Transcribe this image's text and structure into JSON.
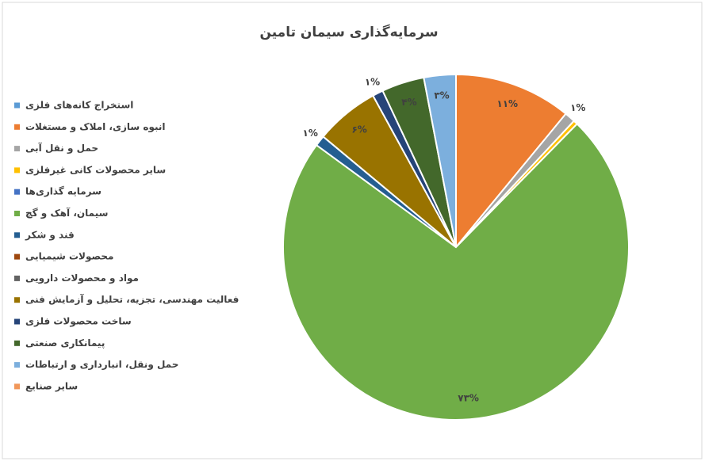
{
  "chart_data": {
    "type": "pie",
    "title": "سرمایه‌گذاری سیمان تامین",
    "categories": [
      "استخراج کانه‌های فلزی",
      "انبوه سازی، املاک و مستغلات",
      "حمل و نقل آبی",
      "سایر محصولات کانی غیرفلزی",
      "سرمایه گذاری‌ها",
      "سیمان، آهک و گچ",
      "قند و شکر",
      "محصولات شیمیایی",
      "مواد و محصولات دارویی",
      "فعالیت مهندسی، تجزیه، تحلیل و آزمایش فنی",
      "ساخت محصولات فلزی",
      "پیمانکاری صنعتی",
      "حمل ونقل، انبارداری و ارتباطات",
      "سایر صنایع"
    ],
    "values": [
      0,
      11,
      1,
      0.4,
      0,
      73,
      1,
      0,
      0,
      6,
      1,
      4,
      3,
      0
    ],
    "value_labels": [
      null,
      "۱۱%",
      "۱%",
      null,
      null,
      "۷۳%",
      "۱%",
      null,
      null,
      "۶%",
      "۱%",
      "۴%",
      "۳%",
      null
    ],
    "colors": [
      "#5b9bd5",
      "#ed7d31",
      "#a5a5a5",
      "#ffc000",
      "#4472c4",
      "#70ad47",
      "#255e91",
      "#9e480e",
      "#636363",
      "#997300",
      "#264478",
      "#43682b",
      "#7cafdd",
      "#f1975a"
    ],
    "legend": "left"
  }
}
